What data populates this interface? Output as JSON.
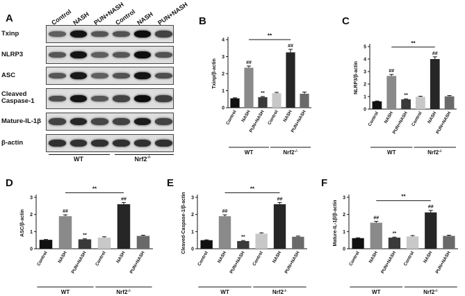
{
  "panels": {
    "A": "A",
    "B": "B",
    "C": "C",
    "D": "D",
    "E": "E",
    "F": "F"
  },
  "blot": {
    "lanes": [
      "Control",
      "NASH",
      "PUN+NASH",
      "Control",
      "NASH",
      "PUN+NASH"
    ],
    "proteins": [
      "Txinp",
      "NLRP3",
      "ASC",
      "Cleaved Caspase-1",
      "Mature-IL-1β",
      "β-actin"
    ],
    "groups": [
      "WT",
      "Nrf2-/-"
    ],
    "intensity": [
      [
        0.55,
        0.95,
        0.6,
        0.62,
        0.98,
        0.7
      ],
      [
        0.6,
        0.95,
        0.55,
        0.6,
        0.98,
        0.62
      ],
      [
        0.6,
        0.92,
        0.55,
        0.62,
        0.95,
        0.65
      ],
      [
        0.65,
        0.95,
        0.6,
        0.7,
        0.98,
        0.72
      ],
      [
        0.7,
        0.85,
        0.68,
        0.7,
        0.9,
        0.7
      ],
      [
        0.8,
        0.8,
        0.8,
        0.8,
        0.8,
        0.8
      ]
    ]
  },
  "chart_data": [
    {
      "panel": "B",
      "type": "bar",
      "categories": [
        "Control",
        "NASH",
        "PUN+NASH",
        "Control",
        "NASH",
        "PUN+NASH"
      ],
      "groups": [
        "WT",
        "Nrf2-/-"
      ],
      "ylabel": "Txinp/β-actin",
      "ylim": [
        0,
        4
      ],
      "yticks": [
        0,
        1,
        2,
        3,
        4
      ],
      "values": [
        0.55,
        2.35,
        0.62,
        0.85,
        3.25,
        0.82
      ],
      "errors": [
        0.03,
        0.1,
        0.04,
        0.05,
        0.18,
        0.1
      ],
      "marks": [
        "",
        "##",
        "**",
        "",
        "##",
        ""
      ],
      "bracket": "**",
      "colors": [
        "#111111",
        "#8a8a8a",
        "#3a3a3a",
        "#c8c8c8",
        "#262626",
        "#6a6a6a"
      ]
    },
    {
      "panel": "C",
      "type": "bar",
      "categories": [
        "Control",
        "NASH",
        "PUN+NASH",
        "Control",
        "NASH",
        "PUN+NASH"
      ],
      "groups": [
        "WT",
        "Nrf2-/-"
      ],
      "ylabel": "NLRP3/β-actin",
      "ylim": [
        0,
        5
      ],
      "yticks": [
        0,
        1,
        2,
        3,
        4,
        5
      ],
      "values": [
        0.62,
        2.65,
        0.78,
        0.98,
        4.0,
        1.02
      ],
      "errors": [
        0.03,
        0.12,
        0.04,
        0.05,
        0.18,
        0.06
      ],
      "marks": [
        "",
        "##",
        "**",
        "",
        "##",
        ""
      ],
      "bracket": "**",
      "colors": [
        "#111111",
        "#8a8a8a",
        "#3a3a3a",
        "#c8c8c8",
        "#262626",
        "#6a6a6a"
      ]
    },
    {
      "panel": "D",
      "type": "bar",
      "categories": [
        "Control",
        "NASH",
        "PUN+NASH",
        "Control",
        "NASH",
        "PUN+NASH"
      ],
      "groups": [
        "WT",
        "Nrf2-/-"
      ],
      "ylabel": "ASC/β-actin",
      "ylim": [
        0,
        3
      ],
      "yticks": [
        0,
        1,
        2,
        3
      ],
      "values": [
        0.52,
        1.9,
        0.55,
        0.65,
        2.6,
        0.75
      ],
      "errors": [
        0.02,
        0.08,
        0.03,
        0.05,
        0.1,
        0.04
      ],
      "marks": [
        "",
        "##",
        "**",
        "",
        "##",
        ""
      ],
      "bracket": "**",
      "colors": [
        "#111111",
        "#8a8a8a",
        "#3a3a3a",
        "#c8c8c8",
        "#262626",
        "#6a6a6a"
      ]
    },
    {
      "panel": "E",
      "type": "bar",
      "categories": [
        "Control",
        "NASH",
        "PUN+NASH",
        "Control",
        "NASH",
        "PUN+NASH"
      ],
      "groups": [
        "WT",
        "Nrf2-/-"
      ],
      "ylabel": "Cleaved-Caspase-1/β-actin",
      "ylim": [
        0,
        3
      ],
      "yticks": [
        0,
        1,
        2,
        3
      ],
      "values": [
        0.5,
        1.9,
        0.45,
        0.88,
        2.6,
        0.7
      ],
      "errors": [
        0.02,
        0.08,
        0.03,
        0.05,
        0.1,
        0.04
      ],
      "marks": [
        "",
        "##",
        "**",
        "",
        "##",
        ""
      ],
      "bracket": "**",
      "colors": [
        "#111111",
        "#8a8a8a",
        "#3a3a3a",
        "#c8c8c8",
        "#262626",
        "#6a6a6a"
      ]
    },
    {
      "panel": "F",
      "type": "bar",
      "categories": [
        "Control",
        "NASH",
        "PUN+NASH",
        "Control",
        "NASH",
        "PUN+NASH"
      ],
      "groups": [
        "WT",
        "Nrf2-/-"
      ],
      "ylabel": "Mature-IL-1β/β-actin",
      "ylim": [
        0,
        3
      ],
      "yticks": [
        0,
        1,
        2,
        3
      ],
      "values": [
        0.62,
        1.52,
        0.65,
        0.72,
        2.12,
        0.75
      ],
      "errors": [
        0.02,
        0.08,
        0.03,
        0.05,
        0.12,
        0.04
      ],
      "marks": [
        "",
        "##",
        "**",
        "",
        "##",
        ""
      ],
      "bracket": "**",
      "colors": [
        "#111111",
        "#8a8a8a",
        "#3a3a3a",
        "#c8c8c8",
        "#262626",
        "#6a6a6a"
      ]
    }
  ]
}
